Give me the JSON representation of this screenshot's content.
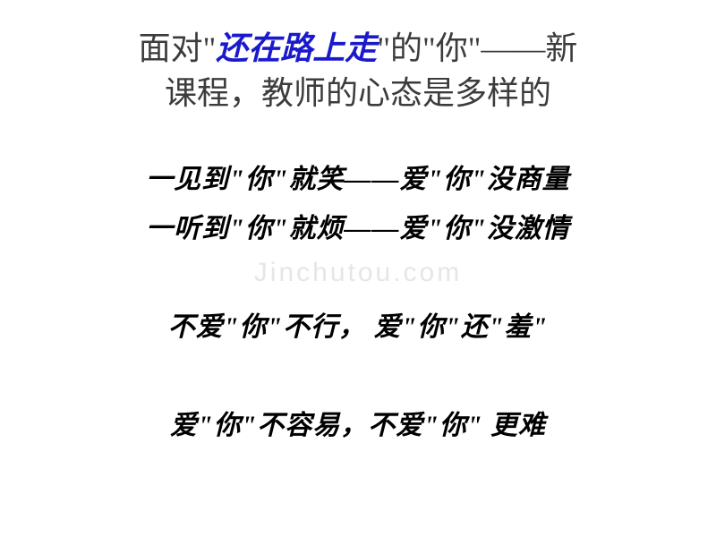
{
  "title": {
    "prefix": "面对\"",
    "emph": "还在路上走",
    "line1_suffix": "\"的\"你\"——新",
    "line2": "课程，教师的心态是多样的",
    "fontsize": 36,
    "color": "#3c3c3c",
    "emph_color": "#1a1acc"
  },
  "lines": {
    "l1": "一见到\"你\"就笑——爱\"你\"没商量",
    "l2": "一听到\"你\"就烦——爱\"你\"没激情",
    "l3": "不爱\"你\"不行， 爱\"你\"还\"羞\"",
    "l4": "爱\"你\"不容易，不爱\"你\" 更难",
    "fontsize": 30,
    "color": "#000000"
  },
  "watermark": {
    "text": "Jinchutou.com",
    "color": "#e6e6e6",
    "fontsize": 30
  }
}
